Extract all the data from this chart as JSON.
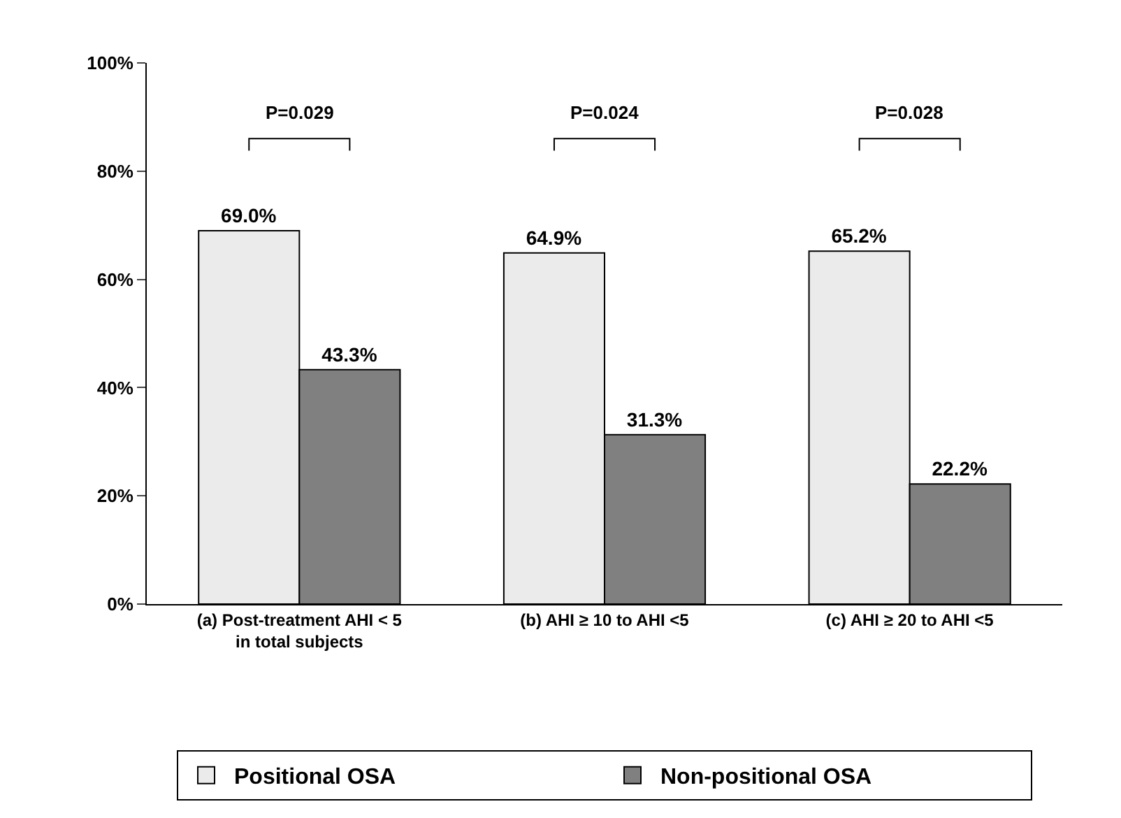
{
  "chart_data": {
    "type": "bar",
    "categories": [
      "(a) Post-treatment AHI < 5\nin total subjects",
      "(b) AHI ≥ 10 to AHI <5",
      "(c) AHI ≥ 20 to AHI <5"
    ],
    "series": [
      {
        "name": "Positional OSA",
        "color": "#ebebeb",
        "values": [
          69.0,
          64.9,
          65.2
        ],
        "value_labels": [
          "69.0%",
          "64.9%",
          "65.2%"
        ]
      },
      {
        "name": "Non-positional OSA",
        "color": "#808080",
        "values": [
          43.3,
          31.3,
          22.2
        ],
        "value_labels": [
          "43.3%",
          "31.3%",
          "22.2%"
        ]
      }
    ],
    "ylim": [
      0,
      100
    ],
    "yticks": [
      {
        "value": 0,
        "label": "0%"
      },
      {
        "value": 20,
        "label": "20%"
      },
      {
        "value": 40,
        "label": "40%"
      },
      {
        "value": 60,
        "label": "60%"
      },
      {
        "value": 80,
        "label": "80%"
      },
      {
        "value": 100,
        "label": "100%"
      }
    ],
    "annotations": [
      "P=0.029",
      "P=0.024",
      "P=0.028"
    ],
    "grid": false,
    "legend": "bottom"
  }
}
